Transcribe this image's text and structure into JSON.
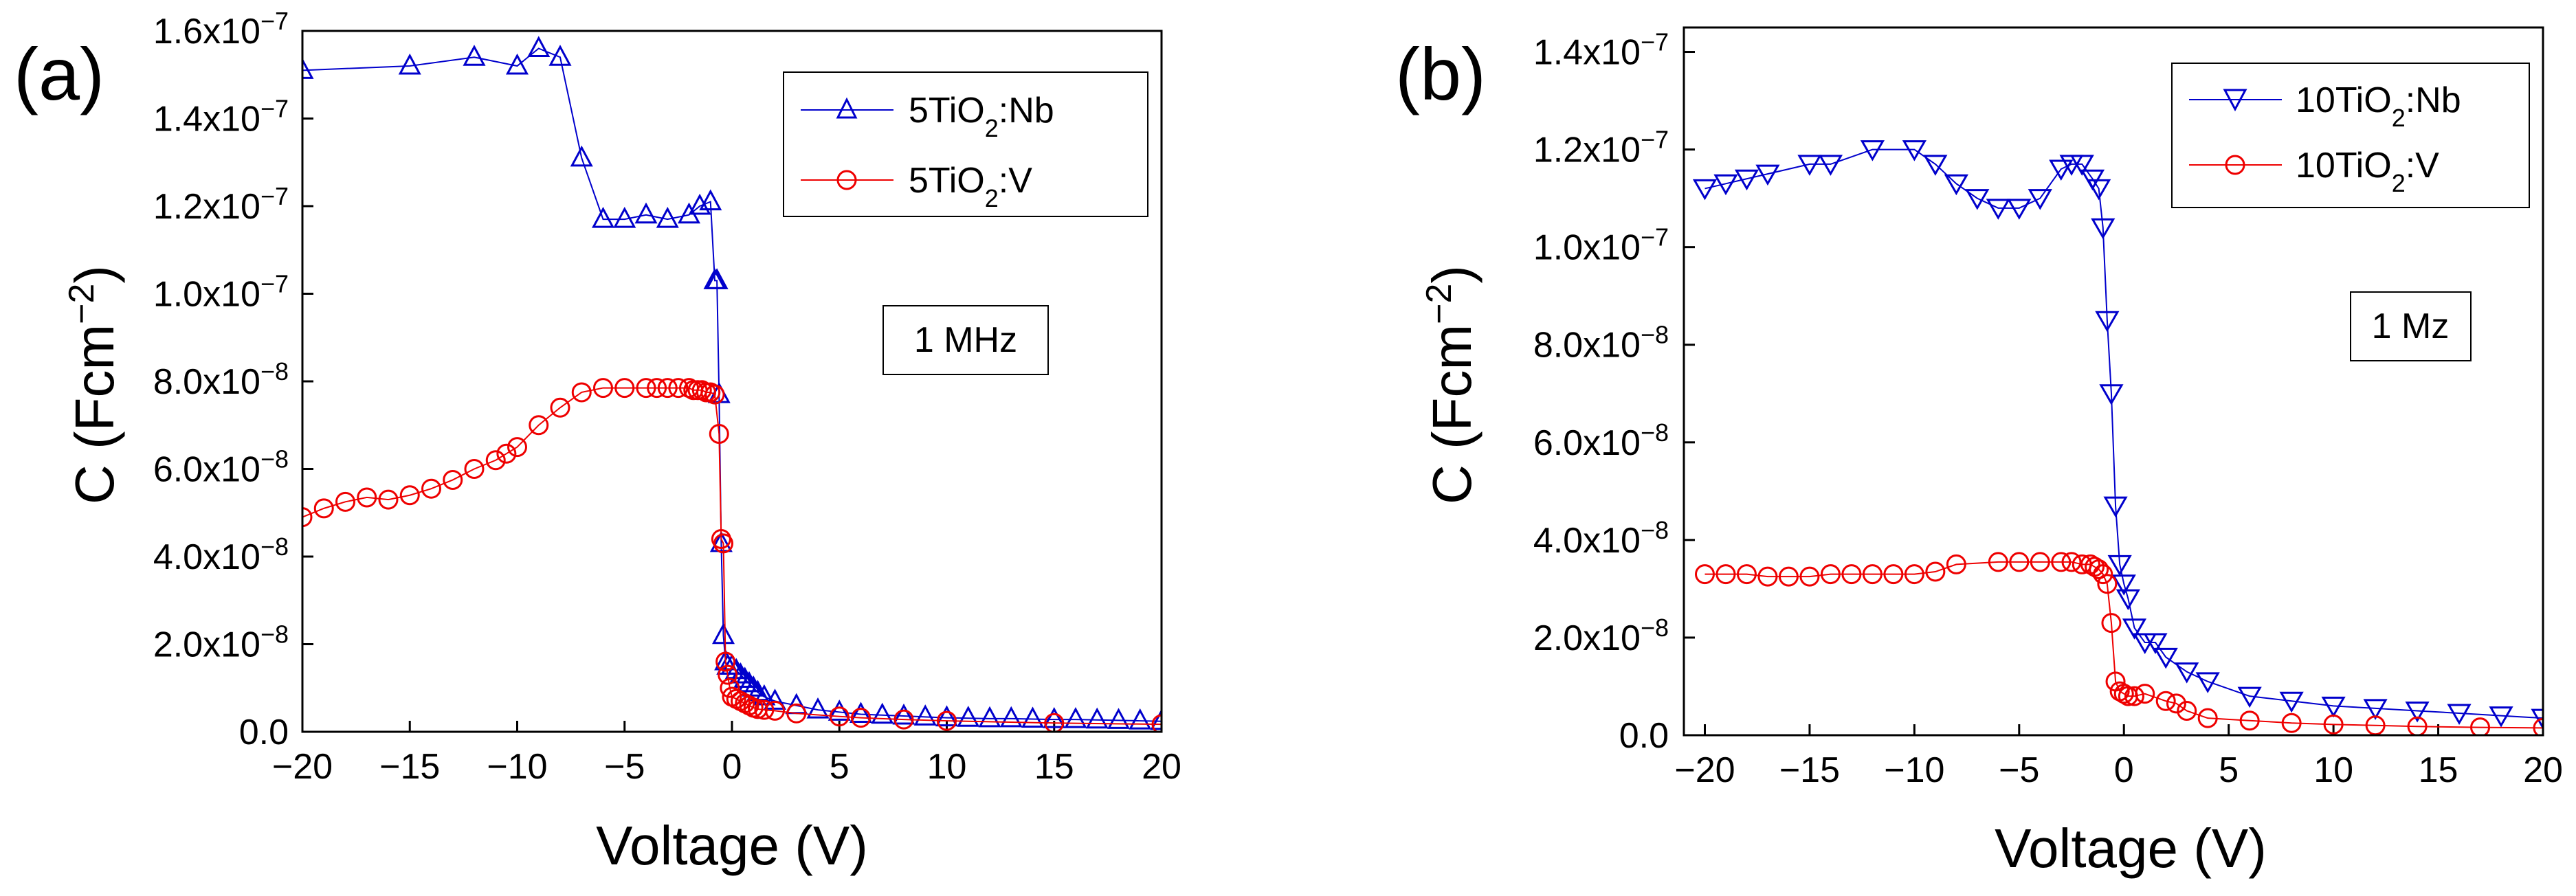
{
  "chart_data": [
    {
      "panel_label": "(a)",
      "type": "line",
      "xlabel": "Voltage (V)",
      "ylabel": {
        "base": "C (Fcm",
        "sup": "−2",
        "tail": ")"
      },
      "xlim": [
        -20,
        20
      ],
      "ylim": [
        0,
        1.6e-07
      ],
      "xticks": [
        -20,
        -15,
        -10,
        -5,
        0,
        5,
        10,
        15,
        20
      ],
      "xtick_labels": [
        "−20",
        "−15",
        "−10",
        "−5",
        "0",
        "5",
        "10",
        "15",
        "20"
      ],
      "yticks": [
        {
          "value": 0,
          "label": "0.0",
          "exp": ""
        },
        {
          "value": 2e-08,
          "label": "2.0x10",
          "exp": "−8"
        },
        {
          "value": 4e-08,
          "label": "4.0x10",
          "exp": "−8"
        },
        {
          "value": 6e-08,
          "label": "6.0x10",
          "exp": "−8"
        },
        {
          "value": 8e-08,
          "label": "8.0x10",
          "exp": "−8"
        },
        {
          "value": 1e-07,
          "label": "1.0x10",
          "exp": "−7"
        },
        {
          "value": 1.2e-07,
          "label": "1.2x10",
          "exp": "−7"
        },
        {
          "value": 1.4e-07,
          "label": "1.4x10",
          "exp": "−7"
        },
        {
          "value": 1.6e-07,
          "label": "1.6x10",
          "exp": "−7"
        }
      ],
      "annotation": "1 MHz",
      "legend_position": "top-right",
      "series": [
        {
          "name": "5TiO2:Nb",
          "label_parts": {
            "pre": "5TiO",
            "sub": "2",
            "post": ":Nb"
          },
          "color": "#0000cc",
          "marker": "triangle-up",
          "x": [
            -20,
            -15,
            -12,
            -10,
            -9,
            -8,
            -7,
            -6,
            -5,
            -4,
            -3,
            -2,
            -1.5,
            -1,
            -0.8,
            -0.7,
            -0.6,
            -0.5,
            -0.4,
            -0.3,
            -0.2,
            0,
            0.2,
            0.4,
            0.6,
            0.8,
            1,
            1.2,
            1.5,
            2,
            3,
            4,
            5,
            6,
            7,
            8,
            9,
            10,
            11,
            12,
            13,
            14,
            15,
            16,
            17,
            18,
            19,
            20
          ],
          "y": [
            1.51e-07,
            1.52e-07,
            1.54e-07,
            1.52e-07,
            1.56e-07,
            1.54e-07,
            1.31e-07,
            1.17e-07,
            1.17e-07,
            1.18e-07,
            1.17e-07,
            1.18e-07,
            1.2e-07,
            1.21e-07,
            1.03e-07,
            1.03e-07,
            7.7e-08,
            4.3e-08,
            2.2e-08,
            1.6e-08,
            1.5e-08,
            1.5e-08,
            1.4e-08,
            1.3e-08,
            1.2e-08,
            1.1e-08,
            1e-08,
            9e-09,
            8e-09,
            7e-09,
            6e-09,
            5e-09,
            4.5e-09,
            4e-09,
            3.8e-09,
            3.6e-09,
            3.4e-09,
            3.2e-09,
            3.1e-09,
            3e-09,
            3e-09,
            2.9e-09,
            2.8e-09,
            2.8e-09,
            2.7e-09,
            2.6e-09,
            2.5e-09,
            2.4e-09
          ]
        },
        {
          "name": "5TiO2:V",
          "label_parts": {
            "pre": "5TiO",
            "sub": "2",
            "post": ":V"
          },
          "color": "#ee0000",
          "marker": "circle",
          "x": [
            -20,
            -19,
            -18,
            -17,
            -16,
            -15,
            -14,
            -13,
            -12,
            -11,
            -10.5,
            -10,
            -9,
            -8,
            -7,
            -6,
            -5,
            -4,
            -3.5,
            -3,
            -2.5,
            -2,
            -1.8,
            -1.6,
            -1.4,
            -1.2,
            -1,
            -0.8,
            -0.6,
            -0.5,
            -0.4,
            -0.3,
            -0.2,
            -0.1,
            0,
            0.2,
            0.4,
            0.6,
            0.8,
            1,
            1.2,
            1.5,
            2,
            3,
            5,
            6,
            8,
            10,
            15,
            20
          ],
          "y": [
            4.9e-08,
            5.1e-08,
            5.25e-08,
            5.35e-08,
            5.3e-08,
            5.4e-08,
            5.55e-08,
            5.75e-08,
            6e-08,
            6.2e-08,
            6.35e-08,
            6.5e-08,
            7e-08,
            7.4e-08,
            7.75e-08,
            7.85e-08,
            7.85e-08,
            7.85e-08,
            7.85e-08,
            7.85e-08,
            7.85e-08,
            7.85e-08,
            7.8e-08,
            7.8e-08,
            7.8e-08,
            7.75e-08,
            7.75e-08,
            7.7e-08,
            6.8e-08,
            4.4e-08,
            4.3e-08,
            1.6e-08,
            1.3e-08,
            1e-08,
            8e-09,
            7.5e-09,
            7e-09,
            6.5e-09,
            6e-09,
            5.5e-09,
            5.2e-09,
            5e-09,
            4.8e-09,
            4.2e-09,
            3.5e-09,
            3.2e-09,
            2.8e-09,
            2.5e-09,
            2e-09,
            1.7e-09
          ]
        }
      ]
    },
    {
      "panel_label": "(b)",
      "type": "line",
      "xlabel": "Voltage (V)",
      "ylabel": {
        "base": "C (Fcm",
        "sup": "−2",
        "tail": ")"
      },
      "xlim": [
        -21,
        20
      ],
      "ylim": [
        0,
        1.45e-07
      ],
      "xticks": [
        -20,
        -15,
        -10,
        -5,
        0,
        5,
        10,
        15,
        20
      ],
      "xtick_labels": [
        "−20",
        "−15",
        "−10",
        "−5",
        "0",
        "5",
        "10",
        "15",
        "20"
      ],
      "yticks": [
        {
          "value": 0,
          "label": "0.0",
          "exp": ""
        },
        {
          "value": 2e-08,
          "label": "2.0x10",
          "exp": "−8"
        },
        {
          "value": 4e-08,
          "label": "4.0x10",
          "exp": "−8"
        },
        {
          "value": 6e-08,
          "label": "6.0x10",
          "exp": "−8"
        },
        {
          "value": 8e-08,
          "label": "8.0x10",
          "exp": "−8"
        },
        {
          "value": 1e-07,
          "label": "1.0x10",
          "exp": "−7"
        },
        {
          "value": 1.2e-07,
          "label": "1.2x10",
          "exp": "−7"
        },
        {
          "value": 1.4e-07,
          "label": "1.4x10",
          "exp": "−7"
        }
      ],
      "annotation": "1 Mz",
      "legend_position": "top-right",
      "series": [
        {
          "name": "10TiO2:Nb",
          "label_parts": {
            "pre": "10TiO",
            "sub": "2",
            "post": ":Nb"
          },
          "color": "#0000cc",
          "marker": "triangle-down",
          "x": [
            -20,
            -19,
            -18,
            -17,
            -15,
            -14,
            -12,
            -10,
            -9,
            -8,
            -7,
            -6,
            -5,
            -4,
            -3,
            -2.5,
            -2,
            -1.5,
            -1.2,
            -1,
            -0.8,
            -0.6,
            -0.4,
            -0.2,
            0,
            0.2,
            0.5,
            1,
            1.5,
            2,
            3,
            4,
            6,
            8,
            10,
            12,
            14,
            16,
            18,
            20
          ],
          "y": [
            1.12e-07,
            1.13e-07,
            1.14e-07,
            1.15e-07,
            1.17e-07,
            1.17e-07,
            1.2e-07,
            1.2e-07,
            1.17e-07,
            1.13e-07,
            1.1e-07,
            1.08e-07,
            1.08e-07,
            1.1e-07,
            1.16e-07,
            1.17e-07,
            1.17e-07,
            1.14e-07,
            1.12e-07,
            1.04e-07,
            8.5e-08,
            7e-08,
            4.7e-08,
            3.5e-08,
            3.1e-08,
            2.8e-08,
            2.2e-08,
            1.9e-08,
            1.9e-08,
            1.6e-08,
            1.3e-08,
            1.1e-08,
            8e-09,
            7e-09,
            6e-09,
            5.5e-09,
            5e-09,
            4.5e-09,
            4e-09,
            3.5e-09
          ]
        },
        {
          "name": "10TiO2:V",
          "label_parts": {
            "pre": "10TiO",
            "sub": "2",
            "post": ":V"
          },
          "color": "#ee0000",
          "marker": "circle",
          "x": [
            -20,
            -19,
            -18,
            -17,
            -16,
            -15,
            -14,
            -13,
            -12,
            -11,
            -10,
            -9,
            -8,
            -6,
            -5,
            -4,
            -3,
            -2.5,
            -2,
            -1.6,
            -1.4,
            -1.2,
            -1,
            -0.8,
            -0.6,
            -0.4,
            -0.2,
            0,
            0.2,
            0.5,
            1,
            2,
            2.5,
            3,
            4,
            6,
            8,
            10,
            12,
            14,
            17,
            20
          ],
          "y": [
            3.3e-08,
            3.3e-08,
            3.3e-08,
            3.25e-08,
            3.25e-08,
            3.25e-08,
            3.3e-08,
            3.3e-08,
            3.3e-08,
            3.3e-08,
            3.3e-08,
            3.35e-08,
            3.5e-08,
            3.55e-08,
            3.55e-08,
            3.55e-08,
            3.55e-08,
            3.55e-08,
            3.5e-08,
            3.5e-08,
            3.45e-08,
            3.4e-08,
            3.3e-08,
            3.1e-08,
            2.3e-08,
            1.1e-08,
            9e-09,
            8.5e-09,
            8e-09,
            8e-09,
            8.5e-09,
            7e-09,
            6.5e-09,
            5e-09,
            3.5e-09,
            3e-09,
            2.5e-09,
            2.2e-09,
            2e-09,
            1.8e-09,
            1.6e-09,
            1.5e-09
          ]
        }
      ]
    }
  ]
}
